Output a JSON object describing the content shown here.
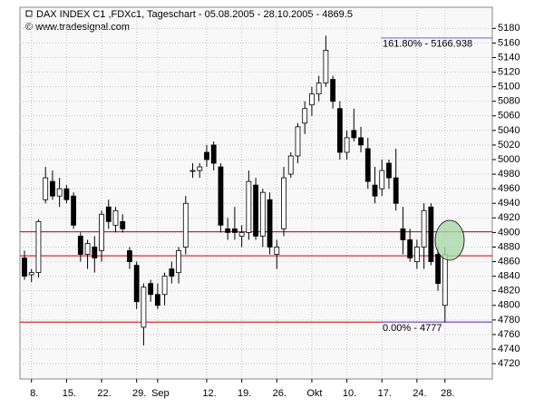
{
  "chart_data": {
    "type": "candlestick",
    "title": "DAX INDEX C1 ,FDXc1, Tageschart - 05.08.2005 - 28.10.2005 - 4869.5",
    "subtitle": "© www.tradesignal.com",
    "categories": [
      null,
      "8.",
      null,
      null,
      null,
      null,
      "15.",
      null,
      null,
      null,
      null,
      "22.",
      null,
      null,
      null,
      null,
      "29.",
      null,
      null,
      "Sep",
      null,
      null,
      null,
      null,
      null,
      null,
      "12.",
      null,
      null,
      null,
      null,
      "19.",
      null,
      null,
      null,
      null,
      "26.",
      null,
      null,
      null,
      null,
      "Okt",
      null,
      null,
      null,
      null,
      "10.",
      null,
      null,
      null,
      null,
      "17.",
      null,
      null,
      null,
      null,
      "24.",
      null,
      null,
      null,
      "28."
    ],
    "open": [
      4865,
      4842,
      4845,
      4945,
      4970,
      4950,
      4960,
      4950,
      4895,
      4870,
      4880,
      4875,
      4935,
      4910,
      4915,
      4875,
      4855,
      4770,
      4830,
      4815,
      4815,
      4850,
      4845,
      4880,
      4985,
      4985,
      5010,
      5020,
      4990,
      4905,
      4905,
      4895,
      4900,
      4965,
      4895,
      4945,
      4870,
      4905,
      4980,
      5005,
      5050,
      5075,
      5090,
      5105,
      5110,
      5070,
      5010,
      5040,
      5030,
      5015,
      4965,
      4960,
      4995,
      4975,
      4905,
      4890,
      4860,
      4880,
      4935,
      4870,
      4800
    ],
    "high": [
      4875,
      4850,
      4918,
      4990,
      4985,
      4975,
      4965,
      4955,
      4900,
      4890,
      4895,
      4930,
      4945,
      4935,
      4925,
      4880,
      4860,
      4830,
      4835,
      4830,
      4845,
      4860,
      4880,
      4950,
      4995,
      4995,
      5020,
      5025,
      4995,
      4920,
      4935,
      4910,
      4985,
      4975,
      4960,
      4955,
      4890,
      4990,
      5010,
      5050,
      5080,
      5100,
      5115,
      5170,
      5115,
      5080,
      5040,
      5070,
      5045,
      5030,
      4990,
      5000,
      5000,
      5015,
      4935,
      4905,
      4890,
      4940,
      4940,
      4880,
      4880
    ],
    "low": [
      4835,
      4832,
      4838,
      4940,
      4945,
      4935,
      4940,
      4905,
      4860,
      4850,
      4845,
      4860,
      4905,
      4900,
      4900,
      4850,
      4795,
      4745,
      4805,
      4795,
      4800,
      4830,
      4830,
      4870,
      4975,
      4975,
      4990,
      4985,
      4900,
      4890,
      4890,
      4880,
      4890,
      4890,
      4880,
      4870,
      4850,
      4895,
      4975,
      4995,
      5035,
      5060,
      5080,
      5100,
      5070,
      5000,
      5000,
      5025,
      5010,
      4960,
      4940,
      4950,
      4960,
      4930,
      4870,
      4860,
      4850,
      4850,
      4855,
      4820,
      4777
    ],
    "close": [
      4840,
      4845,
      4915,
      4975,
      4950,
      4960,
      4945,
      4910,
      4870,
      4885,
      4865,
      4925,
      4915,
      4930,
      4905,
      4860,
      4805,
      4825,
      4815,
      4800,
      4840,
      4840,
      4875,
      4940,
      4985,
      4990,
      5000,
      4995,
      4910,
      4900,
      4900,
      4900,
      4970,
      4895,
      4955,
      4880,
      4880,
      4975,
      5005,
      5045,
      5070,
      5090,
      5105,
      5150,
      5080,
      5010,
      5030,
      5030,
      5020,
      4970,
      4950,
      4985,
      4975,
      4940,
      4890,
      4865,
      4880,
      4930,
      4860,
      4830,
      4869.5
    ],
    "ylim": [
      4699,
      5209
    ],
    "yticks": [
      4720,
      4740,
      4760,
      4780,
      4800,
      4820,
      4840,
      4860,
      4880,
      4900,
      4920,
      4940,
      4960,
      4980,
      5000,
      5020,
      5040,
      5060,
      5080,
      5100,
      5120,
      5140,
      5160,
      5180
    ],
    "grid": true,
    "up_color": "#ffffff",
    "down_color": "#000000",
    "hlines": [
      {
        "value": 4901,
        "color": "#cc0000"
      },
      {
        "value": 4868,
        "color": "#cc0000"
      },
      {
        "value": 4777,
        "color": "#cc0000"
      }
    ],
    "annotations": [
      {
        "label": "161.80% - 5166.938",
        "value": 5166.938,
        "color": "#6666dd"
      },
      {
        "label": "0.00% - 4777",
        "value": 4777,
        "color": "#6666dd"
      }
    ]
  }
}
